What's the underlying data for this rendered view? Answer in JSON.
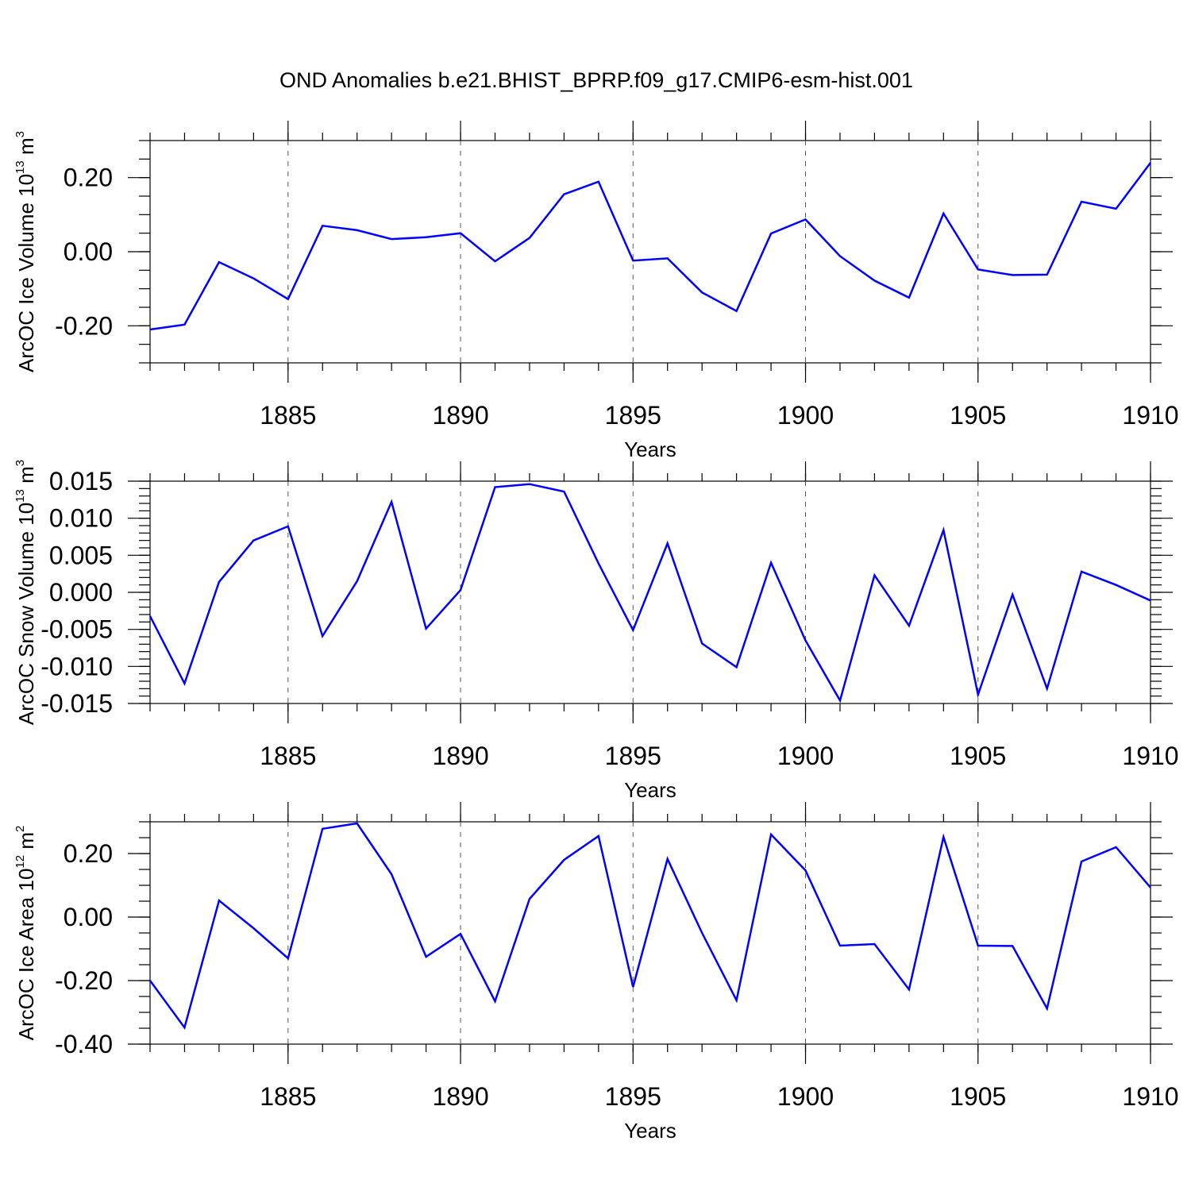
{
  "chart_data": {
    "type": "line",
    "title": "OND Anomalies b.e21.BHIST_BPRP.f09_g17.CMIP6-esm-hist.001",
    "x": [
      1881,
      1882,
      1883,
      1884,
      1885,
      1886,
      1887,
      1888,
      1889,
      1890,
      1891,
      1892,
      1893,
      1894,
      1895,
      1896,
      1897,
      1898,
      1899,
      1900,
      1901,
      1902,
      1903,
      1904,
      1905,
      1906,
      1907,
      1908,
      1909,
      1910
    ],
    "xlim": [
      1881,
      1910
    ],
    "xticks": [
      1885,
      1890,
      1895,
      1900,
      1905,
      1910
    ],
    "xtick_labels": [
      "1885",
      "1890",
      "1895",
      "1900",
      "1905",
      "1910"
    ],
    "xlabel": "Years",
    "grid": "dashed vertical lines at major x ticks",
    "panels": [
      {
        "ylabel_main": "ArcOC Ice Volume 10",
        "ylabel_exp": "13",
        "ylabel_unit": " m",
        "ylabel_unit_exp": "3",
        "ylim": [
          -0.3,
          0.3
        ],
        "yticks": [
          -0.2,
          0.0,
          0.2
        ],
        "ytick_labels": [
          "-0.20",
          "0.00",
          "0.20"
        ],
        "yminor_step": 0.05,
        "values": [
          -0.21,
          -0.197,
          -0.028,
          -0.072,
          -0.128,
          0.07,
          0.058,
          0.034,
          0.039,
          0.05,
          -0.026,
          0.037,
          0.155,
          0.189,
          -0.024,
          -0.018,
          -0.11,
          -0.16,
          0.049,
          0.087,
          -0.012,
          -0.078,
          -0.124,
          0.103,
          -0.048,
          -0.063,
          -0.062,
          0.135,
          0.116,
          0.24
        ]
      },
      {
        "ylabel_main": "ArcOC Snow Volume 10",
        "ylabel_exp": "13",
        "ylabel_unit": " m",
        "ylabel_unit_exp": "3",
        "ylim": [
          -0.015,
          0.015
        ],
        "yticks": [
          -0.015,
          -0.01,
          -0.005,
          0.0,
          0.005,
          0.01,
          0.015
        ],
        "ytick_labels": [
          "-0.015",
          "-0.010",
          "-0.005",
          "0.000",
          "0.005",
          "0.010",
          "0.015"
        ],
        "yminor_step": 0.001,
        "values": [
          -0.0032,
          -0.0123,
          0.0014,
          0.007,
          0.0089,
          -0.0059,
          0.0015,
          0.0122,
          -0.0049,
          0.0003,
          0.0142,
          0.0146,
          0.0136,
          0.0039,
          -0.0051,
          0.0066,
          -0.0069,
          -0.0101,
          0.004,
          -0.0065,
          -0.0146,
          0.0023,
          -0.0045,
          0.0084,
          -0.0138,
          -0.0003,
          -0.013,
          0.0028,
          0.001,
          -0.0011
        ]
      },
      {
        "ylabel_main": "ArcOC Ice Area 10",
        "ylabel_exp": "12",
        "ylabel_unit": " m",
        "ylabel_unit_exp": "2",
        "ylim": [
          -0.4,
          0.3
        ],
        "yticks": [
          -0.4,
          -0.2,
          0.0,
          0.2
        ],
        "ytick_labels": [
          "-0.40",
          "-0.20",
          "0.00",
          "0.20"
        ],
        "yminor_step": 0.05,
        "values": [
          -0.2,
          -0.348,
          0.052,
          -0.035,
          -0.13,
          0.278,
          0.295,
          0.135,
          -0.125,
          -0.053,
          -0.265,
          0.057,
          0.18,
          0.255,
          -0.22,
          0.183,
          -0.05,
          -0.262,
          0.26,
          0.147,
          -0.09,
          -0.085,
          -0.228,
          0.252,
          -0.09,
          -0.091,
          -0.288,
          0.175,
          0.22,
          0.093
        ]
      }
    ]
  }
}
